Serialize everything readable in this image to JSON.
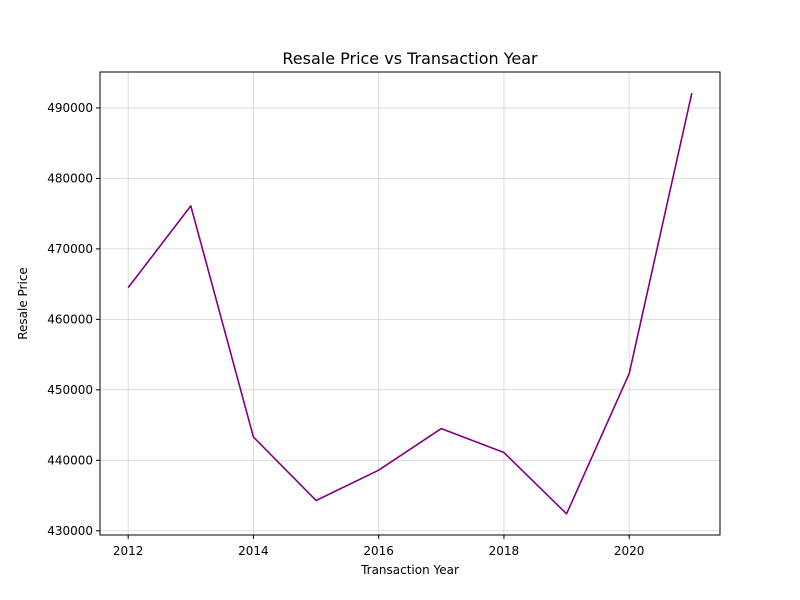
{
  "chart_data": {
    "type": "line",
    "title": "Resale Price vs Transaction Year",
    "xlabel": "Transaction Year",
    "ylabel": "Resale Price",
    "x": [
      2012,
      2013,
      2014,
      2015,
      2016,
      2017,
      2018,
      2019,
      2020,
      2021
    ],
    "series": [
      {
        "values": [
          464500,
          476100,
          443300,
          434300,
          438600,
          444500,
          441100,
          432400,
          452300,
          492100
        ]
      }
    ],
    "xlim": [
      2011.55,
      2021.45
    ],
    "ylim": [
      429400,
      495100
    ],
    "xticks": [
      2012,
      2014,
      2016,
      2018,
      2020
    ],
    "yticks": [
      430000,
      440000,
      450000,
      460000,
      470000,
      480000,
      490000
    ],
    "grid": true,
    "colors": {
      "line": "#800080",
      "grid": "#d3d3d3",
      "axis": "#000000"
    }
  }
}
